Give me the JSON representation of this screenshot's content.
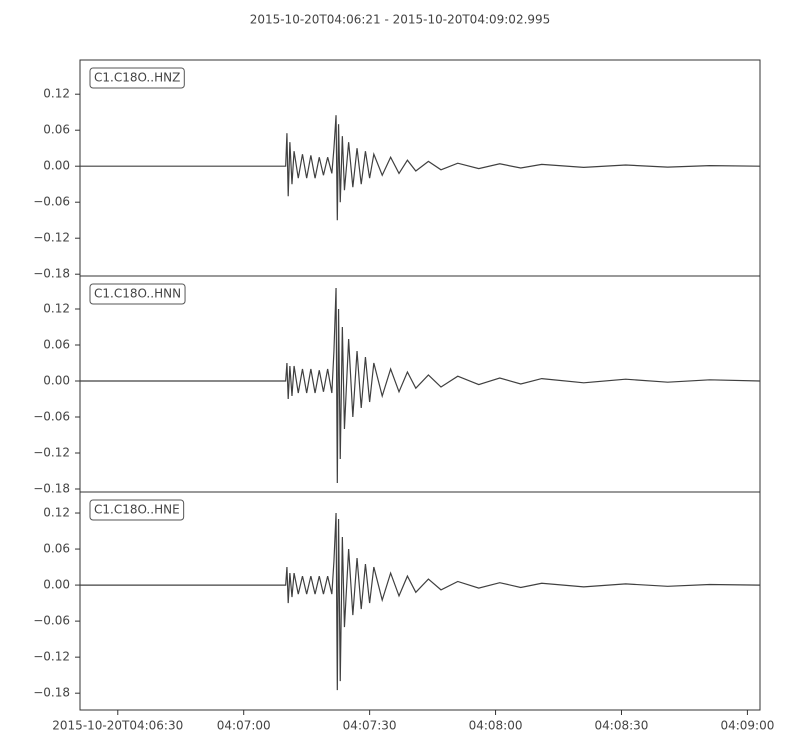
{
  "chart_data": [
    {
      "type": "line",
      "title": "2015-10-20T04:06:21  -  2015-10-20T04:09:02.995",
      "label": "C1.C18O..HNZ",
      "color": "#404040",
      "x": [
        0,
        49,
        49.3,
        49.6,
        50,
        50.5,
        51,
        52,
        53,
        54,
        55,
        56,
        57,
        58,
        59,
        60,
        60.5,
        61,
        61.3,
        61.6,
        62,
        62.5,
        63,
        64,
        65,
        66,
        67,
        68,
        69,
        70,
        72,
        74,
        76,
        78,
        80,
        83,
        86,
        90,
        95,
        100,
        105,
        110,
        120,
        130,
        140,
        150,
        162
      ],
      "values": [
        0,
        0,
        0.055,
        -0.05,
        0.04,
        -0.03,
        0.025,
        -0.02,
        0.02,
        -0.02,
        0.018,
        -0.02,
        0.015,
        -0.015,
        0.015,
        -0.012,
        0.03,
        0.085,
        -0.09,
        0.07,
        -0.06,
        0.05,
        -0.04,
        0.04,
        -0.035,
        0.03,
        -0.03,
        0.025,
        -0.02,
        0.02,
        -0.015,
        0.015,
        -0.012,
        0.01,
        -0.008,
        0.008,
        -0.006,
        0.005,
        -0.004,
        0.004,
        -0.003,
        0.003,
        -0.002,
        0.002,
        -0.0015,
        0.001,
        0
      ],
      "ylim": [
        -0.183,
        0.177
      ],
      "yticks": [
        {
          "value": 0.12,
          "label": "0.12"
        },
        {
          "value": 0.06,
          "label": "0.06"
        },
        {
          "value": 0,
          "label": "0.00"
        },
        {
          "value": -0.06,
          "label": "−0.06"
        },
        {
          "value": -0.12,
          "label": "−0.12"
        },
        {
          "value": -0.18,
          "label": "−0.18"
        }
      ]
    },
    {
      "type": "line",
      "label": "C1.C18O..HNN",
      "color": "#404040",
      "x": [
        0,
        49,
        49.3,
        49.6,
        50,
        50.5,
        51,
        52,
        53,
        54,
        55,
        56,
        57,
        58,
        59,
        60,
        60.5,
        61,
        61.3,
        61.6,
        62,
        62.5,
        63,
        64,
        65,
        66,
        67,
        68,
        69,
        70,
        72,
        74,
        76,
        78,
        80,
        83,
        86,
        90,
        95,
        100,
        105,
        110,
        120,
        130,
        140,
        150,
        162
      ],
      "values": [
        0,
        0,
        0.03,
        -0.03,
        0.025,
        -0.025,
        0.025,
        -0.02,
        0.02,
        -0.02,
        0.02,
        -0.02,
        0.018,
        -0.018,
        0.02,
        -0.02,
        0.05,
        0.155,
        -0.17,
        0.12,
        -0.13,
        0.09,
        -0.08,
        0.07,
        -0.06,
        0.05,
        -0.045,
        0.04,
        -0.035,
        0.03,
        -0.025,
        0.02,
        -0.018,
        0.015,
        -0.012,
        0.01,
        -0.01,
        0.008,
        -0.006,
        0.005,
        -0.005,
        0.004,
        -0.003,
        0.003,
        -0.002,
        0.002,
        0
      ],
      "ylim": [
        -0.185,
        0.175
      ],
      "yticks": [
        {
          "value": 0.12,
          "label": "0.12"
        },
        {
          "value": 0.06,
          "label": "0.06"
        },
        {
          "value": 0,
          "label": "0.00"
        },
        {
          "value": -0.06,
          "label": "−0.06"
        },
        {
          "value": -0.12,
          "label": "−0.12"
        },
        {
          "value": -0.18,
          "label": "−0.18"
        }
      ]
    },
    {
      "type": "line",
      "label": "C1.C18O..HNE",
      "color": "#404040",
      "x": [
        0,
        49,
        49.3,
        49.6,
        50,
        50.5,
        51,
        52,
        53,
        54,
        55,
        56,
        57,
        58,
        59,
        60,
        60.5,
        61,
        61.3,
        61.6,
        62,
        62.5,
        63,
        64,
        65,
        66,
        67,
        68,
        69,
        70,
        72,
        74,
        76,
        78,
        80,
        83,
        86,
        90,
        95,
        100,
        105,
        110,
        120,
        130,
        140,
        150,
        162
      ],
      "values": [
        0,
        0,
        0.03,
        -0.03,
        0.02,
        -0.02,
        0.02,
        -0.015,
        0.015,
        -0.015,
        0.015,
        -0.015,
        0.015,
        -0.015,
        0.015,
        -0.015,
        0.04,
        0.12,
        -0.175,
        0.11,
        -0.16,
        0.08,
        -0.07,
        0.06,
        -0.05,
        0.045,
        -0.04,
        0.035,
        -0.03,
        0.03,
        -0.025,
        0.02,
        -0.018,
        0.015,
        -0.012,
        0.01,
        -0.008,
        0.006,
        -0.005,
        0.004,
        -0.004,
        0.003,
        -0.003,
        0.002,
        -0.002,
        0.001,
        0
      ],
      "ylim": [
        -0.208,
        0.155
      ],
      "yticks": [
        {
          "value": 0.12,
          "label": "0.12"
        },
        {
          "value": 0.06,
          "label": "0.06"
        },
        {
          "value": 0,
          "label": "0.00"
        },
        {
          "value": -0.06,
          "label": "−0.06"
        },
        {
          "value": -0.12,
          "label": "−0.12"
        },
        {
          "value": -0.18,
          "label": "−0.18"
        }
      ],
      "xlim": [
        0,
        162
      ],
      "xticks": [
        {
          "value": 9,
          "label": "2015-10-20T04:06:30"
        },
        {
          "value": 39,
          "label": "04:07:00"
        },
        {
          "value": 69,
          "label": "04:07:30"
        },
        {
          "value": 99,
          "label": "04:08:00"
        },
        {
          "value": 129,
          "label": "04:08:30"
        },
        {
          "value": 159,
          "label": "04:09:00"
        }
      ]
    }
  ]
}
